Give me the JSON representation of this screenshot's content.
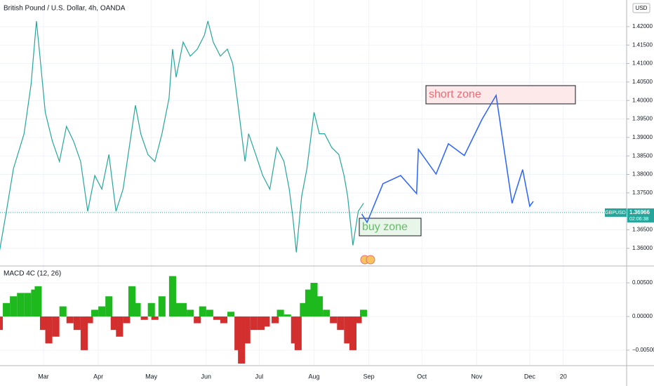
{
  "chart_data": [
    {
      "type": "line",
      "title": "British Pound / U.S. Dollar, 4h, OANDA",
      "currency": "USD",
      "x": [
        35,
        39,
        43,
        49,
        53,
        56,
        58,
        61,
        65,
        69,
        73,
        77,
        81,
        85,
        89,
        93,
        97,
        101,
        105,
        109,
        112,
        115,
        119,
        123,
        127,
        131,
        133,
        135,
        139,
        143,
        147,
        151,
        153,
        156,
        160,
        164,
        167,
        170,
        174,
        176,
        180,
        184,
        188,
        192,
        196,
        199,
        201,
        203,
        206,
        209,
        213,
        216,
        219,
        223,
        227,
        230,
        232,
        235,
        238,
        241
      ],
      "values": [
        1.3589,
        1.37,
        1.3816,
        1.391,
        1.4044,
        1.4215,
        1.412,
        1.3968,
        1.389,
        1.3835,
        1.393,
        1.389,
        1.3835,
        1.37,
        1.3797,
        1.376,
        1.3854,
        1.37,
        1.376,
        1.389,
        1.3987,
        1.391,
        1.3854,
        1.3835,
        1.391,
        1.4006,
        1.4139,
        1.4063,
        1.4158,
        1.412,
        1.4139,
        1.4177,
        1.4215,
        1.4158,
        1.412,
        1.4139,
        1.41,
        1.3987,
        1.3835,
        1.391,
        1.3854,
        1.3797,
        1.376,
        1.3873,
        1.3835,
        1.376,
        1.3684,
        1.3589,
        1.3741,
        1.3816,
        1.3968,
        1.391,
        1.391,
        1.3873,
        1.3854,
        1.3797,
        1.3741,
        1.3608,
        1.37,
        1.3722
      ],
      "color": "#26a69a",
      "projection": {
        "x": [
          240,
          243,
          252,
          262,
          271,
          272,
          282,
          289,
          298,
          308,
          316,
          325,
          331,
          335,
          337
        ],
        "values": [
          1.3693,
          1.367,
          1.3775,
          1.3797,
          1.3748,
          1.3868,
          1.3801,
          1.3883,
          1.3851,
          1.3949,
          1.4014,
          1.3722,
          1.3813,
          1.3714,
          1.3727
        ],
        "color": "#2962ff"
      },
      "symbol": "GBPUSD",
      "last_price": 1.36966,
      "countdown": "02:06:38",
      "annotations": [
        "short zone",
        "buy zone"
      ],
      "xlim": [
        35.4,
        389.8
      ],
      "ylim": [
        1.3554,
        1.4272
      ],
      "yticks": [
        {
          "value": 1.36,
          "label": "1.36000"
        },
        {
          "value": 1.365,
          "label": "1.36500"
        },
        {
          "value": 1.37,
          "label": "1.37000"
        },
        {
          "value": 1.375,
          "label": "1.37500"
        },
        {
          "value": 1.38,
          "label": "1.38000"
        },
        {
          "value": 1.385,
          "label": "1.38500"
        },
        {
          "value": 1.39,
          "label": "1.39000"
        },
        {
          "value": 1.395,
          "label": "1.39500"
        },
        {
          "value": 1.4,
          "label": "1.40000"
        },
        {
          "value": 1.405,
          "label": "1.40500"
        },
        {
          "value": 1.41,
          "label": "1.41000"
        },
        {
          "value": 1.415,
          "label": "1.41500"
        },
        {
          "value": 1.42,
          "label": "1.42000"
        }
      ],
      "grid": true
    },
    {
      "type": "bar",
      "title": "MACD 4C (12, 26)",
      "x": [
        35,
        39,
        43,
        47,
        51,
        55,
        57,
        60,
        63,
        67,
        71,
        75,
        79,
        83,
        86,
        89,
        93,
        97,
        100,
        103,
        107,
        110,
        113,
        117,
        121,
        123,
        127,
        133,
        135,
        139,
        143,
        147,
        150,
        154,
        158,
        162,
        166,
        170,
        172,
        175,
        179,
        183,
        186,
        191,
        194,
        198,
        202,
        204,
        207,
        210,
        213,
        216,
        220,
        224,
        228,
        232,
        235,
        238,
        241
      ],
      "values": [
        -0.002,
        0.002,
        0.003,
        0.0035,
        0.0035,
        0.004,
        0.0045,
        -0.002,
        -0.004,
        -0.003,
        0.0015,
        -0.001,
        -0.002,
        -0.005,
        -0.001,
        0.001,
        0.0015,
        0.003,
        -0.002,
        -0.003,
        -0.001,
        0.0045,
        0.002,
        -0.0005,
        0.002,
        -0.0005,
        0.003,
        0.006,
        0.002,
        0.002,
        0.001,
        -0.001,
        0.0015,
        0.001,
        -0.0005,
        -0.001,
        0.0007,
        -0.005,
        -0.007,
        -0.004,
        -0.002,
        -0.002,
        -0.0015,
        -0.001,
        0.001,
        0.0003,
        -0.004,
        -0.005,
        0.002,
        0.004,
        0.005,
        0.003,
        0.001,
        -0.001,
        -0.002,
        -0.004,
        -0.005,
        -0.001,
        0.001
      ],
      "positive_color": "#1db91d",
      "negative_color": "#d32f2f",
      "xlim": [
        35.4,
        389.8
      ],
      "ylim": [
        -0.0072,
        0.0074
      ],
      "yticks": [
        {
          "value": -0.005,
          "label": "−0.00500"
        },
        {
          "value": 0,
          "label": "0.00000"
        },
        {
          "value": 0.005,
          "label": "0.00500"
        }
      ],
      "xticks": [
        {
          "value": 60,
          "label": "Mar"
        },
        {
          "value": 91,
          "label": "Apr"
        },
        {
          "value": 121,
          "label": "May"
        },
        {
          "value": 152,
          "label": "Jun"
        },
        {
          "value": 182,
          "label": "Jul"
        },
        {
          "value": 213,
          "label": "Aug"
        },
        {
          "value": 244,
          "label": "Sep"
        },
        {
          "value": 274,
          "label": "Oct"
        },
        {
          "value": 305,
          "label": "Nov"
        },
        {
          "value": 335,
          "label": "Dec"
        },
        {
          "value": 354,
          "label": "20"
        }
      ],
      "grid": true
    }
  ]
}
